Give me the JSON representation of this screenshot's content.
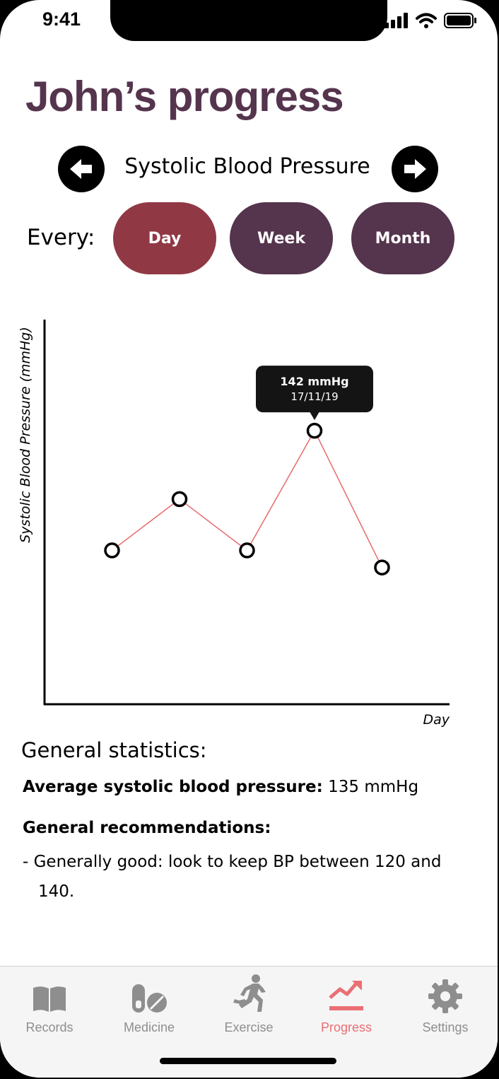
{
  "status_bar": {
    "time": "9:41"
  },
  "header": {
    "title": "John’s progress"
  },
  "metric_selector": {
    "label": "Systolic Blood Pressure"
  },
  "interval": {
    "label": "Every:",
    "options": [
      {
        "label": "Day",
        "color": "#913845",
        "selected": true
      },
      {
        "label": "Week",
        "color": "#55344d",
        "selected": false
      },
      {
        "label": "Month",
        "color": "#55344d",
        "selected": false
      }
    ]
  },
  "chart_data": {
    "type": "line",
    "ylabel": "Systolic Blood Pressure (mmHg)",
    "xlabel": "Day",
    "line_color": "#e66c6c",
    "points": [
      {
        "x": 1,
        "y": 128
      },
      {
        "x": 2,
        "y": 134
      },
      {
        "x": 3,
        "y": 128
      },
      {
        "x": 4,
        "y": 142
      },
      {
        "x": 5,
        "y": 126
      }
    ],
    "xlim": [
      0,
      6
    ],
    "ylim": [
      110,
      155
    ],
    "tooltip": {
      "value": "142 mmHg",
      "date": "17/11/19",
      "point_index": 3
    }
  },
  "stats": {
    "title": "General statistics:",
    "average_label": "Average systolic blood pressure:",
    "average_value": "135 mmHg",
    "recommendations_title": "General recommendations:",
    "recommendation": "- Generally good: look to keep BP between 120 and 140."
  },
  "tabbar": {
    "items": [
      {
        "label": "Records",
        "icon": "book-icon",
        "active": false
      },
      {
        "label": "Medicine",
        "icon": "pills-icon",
        "active": false
      },
      {
        "label": "Exercise",
        "icon": "running-icon",
        "active": false
      },
      {
        "label": "Progress",
        "icon": "trend-icon",
        "active": true
      },
      {
        "label": "Settings",
        "icon": "gear-icon",
        "active": false
      }
    ]
  }
}
